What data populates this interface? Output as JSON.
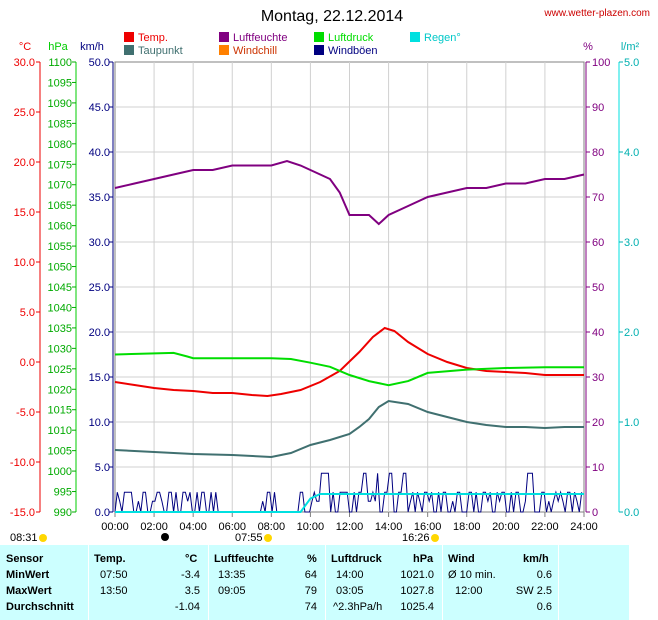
{
  "title": "Montag, 22.12.2014",
  "site": "www.wetter-plazen.com",
  "legend": [
    {
      "label": "Temp.",
      "color": "#ee0000",
      "key": "temp"
    },
    {
      "label": "Luftfeuchte",
      "color": "#800080",
      "key": "humidity"
    },
    {
      "label": "Luftdruck",
      "color": "#00dd00",
      "key": "pressure"
    },
    {
      "label": "Regen°",
      "color": "#00e0e0",
      "key": "rain"
    },
    {
      "label": "Taupunkt",
      "color": "#407070",
      "key": "dewpoint"
    },
    {
      "label": "Windchill",
      "color": "#ff8000",
      "key": "windchill"
    },
    {
      "label": "Windböen",
      "color": "#000080",
      "key": "gusts"
    }
  ],
  "units": {
    "celsius": "°C",
    "hpa": "hPa",
    "kmh": "km/h",
    "percent": "%",
    "rain": "l/m²"
  },
  "axes": {
    "celsius": {
      "labels": [
        "30.0",
        "25.0",
        "20.0",
        "15.0",
        "10.0",
        "5.0",
        "0.0",
        "-5.0",
        "-10.0",
        "-15.0"
      ],
      "color": "#ee0000"
    },
    "hpa": {
      "labels": [
        "1100",
        "1095",
        "1090",
        "1085",
        "1080",
        "1075",
        "1070",
        "1065",
        "1060",
        "1055",
        "1050",
        "1045",
        "1040",
        "1035",
        "1030",
        "1025",
        "1020",
        "1015",
        "1010",
        "1005",
        "1000",
        "995",
        "990"
      ],
      "color": "#00cc00"
    },
    "kmh": {
      "labels": [
        "50.0",
        "45.0",
        "40.0",
        "35.0",
        "30.0",
        "25.0",
        "20.0",
        "15.0",
        "10.0",
        "5.0",
        "0.0"
      ],
      "color": "#000080"
    },
    "percent": {
      "labels": [
        "100",
        "90",
        "80",
        "70",
        "60",
        "50",
        "40",
        "30",
        "20",
        "10",
        "0"
      ],
      "color": "#800080"
    },
    "rain": {
      "labels": [
        "5.0",
        "4.0",
        "3.0",
        "2.0",
        "1.0",
        "0.0"
      ],
      "color": "#00e0e0"
    },
    "time": [
      "00:00",
      "02:00",
      "04:00",
      "06:00",
      "08:00",
      "10:00",
      "12:00",
      "14:00",
      "16:00",
      "18:00",
      "20:00",
      "22:00",
      "24:00"
    ]
  },
  "events": {
    "sunrise": "08:31",
    "moon": "07:55",
    "sunset": "16:26"
  },
  "chart_data": {
    "type": "line",
    "xlim": [
      0,
      24
    ],
    "series": [
      {
        "name": "Temp.",
        "unit": "°C",
        "ylim": [
          -15,
          30
        ],
        "color": "#ee0000",
        "x": [
          0,
          1,
          2,
          3,
          4,
          5,
          6,
          7,
          7.8,
          8.5,
          9.5,
          10.5,
          11.5,
          12.5,
          13.2,
          13.8,
          14.3,
          15,
          16,
          17,
          18,
          19,
          20,
          21,
          22,
          23,
          24
        ],
        "y": [
          -2.0,
          -2.3,
          -2.6,
          -2.8,
          -2.9,
          -3.1,
          -3.1,
          -3.3,
          -3.4,
          -3.2,
          -2.8,
          -2.0,
          -0.9,
          1.0,
          2.5,
          3.4,
          3.1,
          2.0,
          0.8,
          0.0,
          -0.6,
          -0.9,
          -1.0,
          -1.1,
          -1.3,
          -1.3,
          -1.3
        ]
      },
      {
        "name": "Taupunkt",
        "unit": "°C",
        "ylim": [
          -15,
          30
        ],
        "color": "#407070",
        "x": [
          0,
          2,
          4,
          6,
          8,
          9,
          10,
          11,
          12,
          12.5,
          13,
          13.5,
          14,
          15,
          16,
          17,
          18,
          19,
          20,
          21,
          22,
          23,
          24
        ],
        "y": [
          -8.8,
          -9.0,
          -9.2,
          -9.3,
          -9.5,
          -9.1,
          -8.3,
          -7.8,
          -7.2,
          -6.5,
          -5.7,
          -4.5,
          -3.9,
          -4.2,
          -5.0,
          -5.5,
          -6.0,
          -6.3,
          -6.5,
          -6.5,
          -6.6,
          -6.5,
          -6.5
        ]
      },
      {
        "name": "Luftdruck",
        "unit": "hPa",
        "ylim": [
          990,
          1100
        ],
        "color": "#00dd00",
        "x": [
          0,
          3,
          3.7,
          4,
          6,
          8,
          9,
          10,
          11,
          12,
          13,
          14,
          15,
          16,
          18,
          20,
          22,
          24
        ],
        "y": [
          1028.5,
          1028.9,
          1028.0,
          1027.6,
          1027.6,
          1027.6,
          1027.4,
          1026.5,
          1025.5,
          1023.5,
          1022.0,
          1021.0,
          1022.0,
          1024.0,
          1024.8,
          1025.2,
          1025.4,
          1025.4
        ]
      },
      {
        "name": "Luftfeuchte",
        "unit": "%",
        "ylim": [
          0,
          100
        ],
        "color": "#800080",
        "x": [
          0,
          1,
          2,
          3,
          4,
          5,
          6,
          7,
          8,
          8.8,
          9.5,
          10.5,
          11,
          11.5,
          12,
          12.5,
          13,
          13.5,
          14,
          15,
          16,
          17,
          18,
          19,
          20,
          21,
          22,
          23,
          24
        ],
        "y": [
          72,
          73,
          74,
          75,
          76,
          76,
          77,
          77,
          77,
          78,
          77,
          75,
          74,
          71,
          66,
          66,
          66,
          64,
          66,
          68,
          70,
          71,
          72,
          72,
          73,
          73,
          74,
          74,
          75
        ]
      },
      {
        "name": "Regen°",
        "unit": "l/m²",
        "ylim": [
          0,
          5
        ],
        "color": "#00e0e0",
        "x": [
          0,
          9.5,
          10,
          10.5,
          24
        ],
        "y": [
          0.0,
          0.0,
          0.15,
          0.2,
          0.2
        ]
      }
    ]
  },
  "stats": {
    "headers": {
      "sensor": "Sensor",
      "temp": "Temp.",
      "temp_unit": "°C",
      "hum": "Luftfeuchte",
      "hum_unit": "%",
      "press": "Luftdruck",
      "press_unit": "hPa",
      "wind": "Wind",
      "wind_unit": "km/h"
    },
    "rows": [
      {
        "label": "MinWert",
        "t_time": "07:50",
        "t_val": "-3.4",
        "h_time": "13:35",
        "h_val": "64",
        "p_time": "14:00",
        "p_val": "1021.0",
        "w_label": "Ø 10 min.",
        "w_val": "0.6"
      },
      {
        "label": "MaxWert",
        "t_time": "13:50",
        "t_val": "3.5",
        "h_time": "09:05",
        "h_val": "79",
        "p_time": "03:05",
        "p_val": "1027.8",
        "w_label": "12:00",
        "w_val": "SW 2.5"
      },
      {
        "label": "Durchschnitt",
        "t_time": "",
        "t_val": "-1.04",
        "h_time": "",
        "h_val": "74",
        "p_time": "^2.3hPa/h",
        "p_val": "1025.4",
        "w_label": "",
        "w_val": "0.6"
      }
    ]
  }
}
